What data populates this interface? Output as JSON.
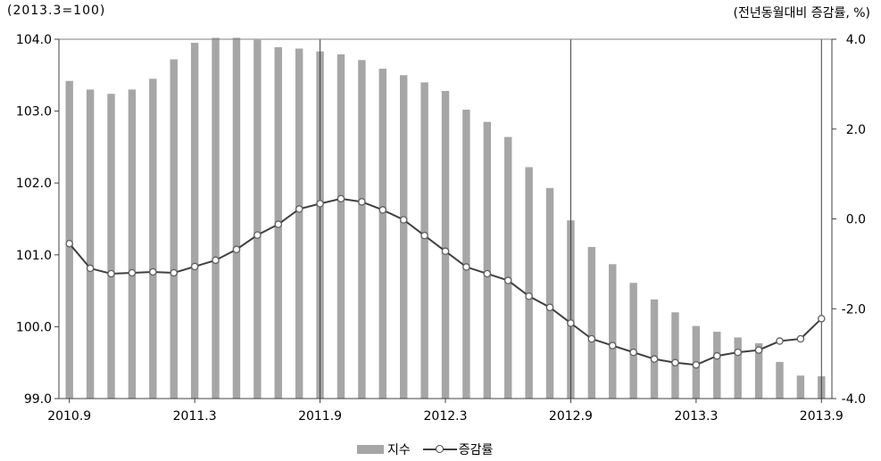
{
  "units": {
    "left": "(2013.3=100)",
    "right": "(전년동월대비 증감률, %)"
  },
  "legend": {
    "bar": "지수",
    "line": "증감률"
  },
  "chart_data": {
    "type": "bar+line",
    "x_tick_labels": [
      "2010.9",
      "2011.3",
      "2011.9",
      "2012.3",
      "2012.9",
      "2013.3",
      "2013.9"
    ],
    "left_axis": {
      "ylim": [
        99.0,
        104.0
      ],
      "ticks": [
        "99.0",
        "100.0",
        "101.0",
        "102.0",
        "103.0",
        "104.0"
      ]
    },
    "right_axis": {
      "ylim": [
        -4.0,
        4.0
      ],
      "ticks": [
        "-4.0",
        "-2.0",
        "0.0",
        "2.0",
        "4.0"
      ]
    },
    "grid": false,
    "vertical_reference_lines_at": [
      "2011.9",
      "2012.9",
      "2013.9"
    ],
    "series": [
      {
        "name": "지수",
        "type": "bar",
        "axis": "left",
        "color": "#a6a6a6",
        "values": [
          103.42,
          103.3,
          103.24,
          103.3,
          103.45,
          103.72,
          103.95,
          104.02,
          104.02,
          103.99,
          103.89,
          103.87,
          103.83,
          103.79,
          103.71,
          103.59,
          103.5,
          103.4,
          103.28,
          103.02,
          102.85,
          102.64,
          102.22,
          101.93,
          101.48,
          101.11,
          100.87,
          100.61,
          100.38,
          100.2,
          100.01,
          99.93,
          99.85,
          99.77,
          99.51,
          99.32,
          99.31
        ]
      },
      {
        "name": "증감률",
        "type": "line",
        "axis": "right",
        "color": "#404040",
        "values": [
          -0.55,
          -1.1,
          -1.22,
          -1.2,
          -1.18,
          -1.2,
          -1.06,
          -0.92,
          -0.68,
          -0.36,
          -0.12,
          0.22,
          0.34,
          0.45,
          0.38,
          0.2,
          -0.02,
          -0.37,
          -0.72,
          -1.07,
          -1.22,
          -1.37,
          -1.72,
          -1.97,
          -2.32,
          -2.67,
          -2.82,
          -2.97,
          -3.12,
          -3.2,
          -3.25,
          -3.05,
          -2.97,
          -2.92,
          -2.72,
          -2.67,
          -2.22
        ]
      }
    ]
  }
}
